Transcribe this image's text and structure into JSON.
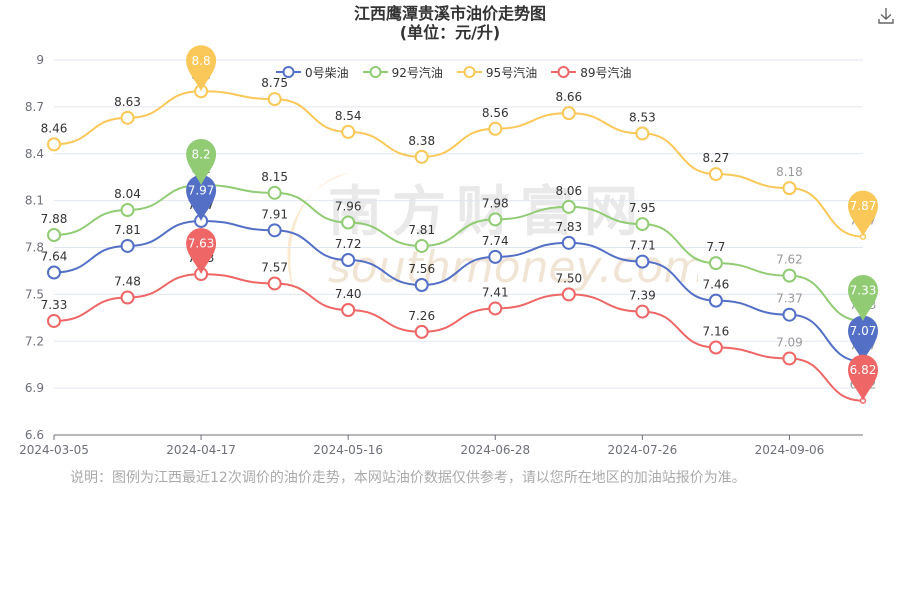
{
  "page": {
    "title_line1": "江西鹰潭贵溪市油价走势图",
    "title_line2": "(单位：元/升)",
    "note": "说明：图例为江西最近12次调价的油价走势，本网站油价数据仅供参考，请以您所在地区的加油站报价为准。",
    "watermark": {
      "cn": "南方财富网",
      "en": "southmoney.com"
    }
  },
  "chart_data": {
    "type": "line",
    "y_ticks": [
      "9",
      "8.7",
      "8.4",
      "8.1",
      "7.8",
      "7.5",
      "7.2",
      "6.9",
      "6.6"
    ],
    "ylim": [
      6.6,
      9.0
    ],
    "x_tick_labels": [
      "2024-03-05",
      "2024-04-17",
      "2024-05-16",
      "2024-06-28",
      "2024-07-26",
      "2024-09-06"
    ],
    "x_tick_index": [
      0,
      2,
      4,
      6,
      8,
      10
    ],
    "grid": true,
    "legend_position": "top",
    "series": [
      {
        "name": "0号柴油",
        "color": "#5470c6",
        "values": [
          7.64,
          7.81,
          7.97,
          7.91,
          7.72,
          7.56,
          7.74,
          7.83,
          7.71,
          7.46,
          7.37,
          7.07
        ],
        "labels": [
          "7.64",
          "7.81",
          "7.97",
          "7.91",
          "7.72",
          "7.56",
          "7.74",
          "7.83",
          "7.71",
          "7.46",
          "7.37",
          "7.07"
        ],
        "max_pin": "7.97",
        "last_pin": "7.07"
      },
      {
        "name": "92号汽油",
        "color": "#91cc75",
        "values": [
          7.88,
          8.04,
          8.2,
          8.15,
          7.96,
          7.81,
          7.98,
          8.06,
          7.95,
          7.7,
          7.62,
          7.33
        ],
        "labels": [
          "7.88",
          "8.04",
          "8.2",
          "8.15",
          "7.96",
          "7.81",
          "7.98",
          "8.06",
          "7.95",
          "7.7",
          "7.62",
          "7.33"
        ],
        "max_pin": "8.2",
        "last_pin": "7.33"
      },
      {
        "name": "95号汽油",
        "color": "#fac858",
        "values": [
          8.46,
          8.63,
          8.8,
          8.75,
          8.54,
          8.38,
          8.56,
          8.66,
          8.53,
          8.27,
          8.18,
          7.87
        ],
        "labels": [
          "8.46",
          "8.63",
          "8.8",
          "8.75",
          "8.54",
          "8.38",
          "8.56",
          "8.66",
          "8.53",
          "8.27",
          "8.18",
          "7.87"
        ],
        "max_pin": "8.8",
        "last_pin": "7.87"
      },
      {
        "name": "89号汽油",
        "color": "#ee6666",
        "values": [
          7.33,
          7.48,
          7.63,
          7.57,
          7.4,
          7.26,
          7.41,
          7.5,
          7.39,
          7.16,
          7.09,
          6.82
        ],
        "labels": [
          "7.33",
          "7.48",
          "7.63",
          "7.57",
          "7.40",
          "7.26",
          "7.41",
          "7.50",
          "7.39",
          "7.16",
          "7.09",
          "6.82"
        ],
        "max_pin": "7.63",
        "last_pin": "6.82"
      }
    ]
  }
}
